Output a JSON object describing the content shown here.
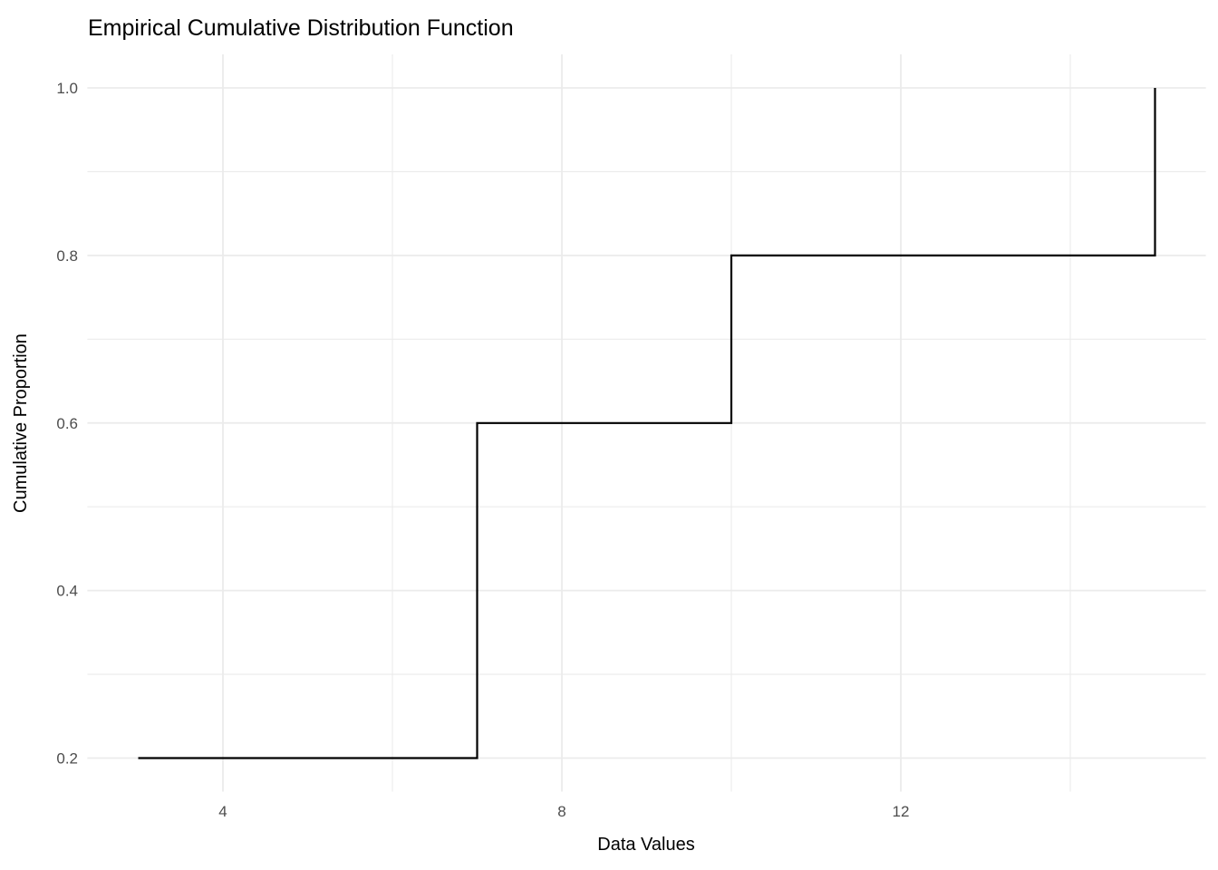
{
  "chart_data": {
    "type": "line",
    "subtype": "ecdf-step",
    "title": "Empirical Cumulative Distribution Function",
    "xlabel": "Data Values",
    "ylabel": "Cumulative Proportion",
    "data_values": [
      3,
      7,
      7,
      10,
      15
    ],
    "ecdf_points": [
      {
        "x": 3,
        "cumulative_proportion": 0.2
      },
      {
        "x": 7,
        "cumulative_proportion": 0.6
      },
      {
        "x": 10,
        "cumulative_proportion": 0.8
      },
      {
        "x": 15,
        "cumulative_proportion": 1.0
      }
    ],
    "step_path": [
      [
        3,
        0.2
      ],
      [
        7,
        0.2
      ],
      [
        7,
        0.6
      ],
      [
        10,
        0.6
      ],
      [
        10,
        0.8
      ],
      [
        15,
        0.8
      ],
      [
        15,
        1.0
      ]
    ],
    "x_tick_labels": [
      "4",
      "8",
      "12"
    ],
    "x_tick_values": [
      4,
      8,
      12
    ],
    "x_minor_gridlines": [
      6,
      10,
      14
    ],
    "y_tick_labels": [
      "0.2",
      "0.4",
      "0.6",
      "0.8",
      "1.0"
    ],
    "y_tick_values": [
      0.2,
      0.4,
      0.6,
      0.8,
      1.0
    ],
    "y_minor_gridlines": [
      0.3,
      0.5,
      0.7,
      0.9
    ],
    "xlim": [
      2.4,
      15.6
    ],
    "ylim": [
      0.16,
      1.04
    ],
    "grid": true,
    "legend_position": "none",
    "colors": {
      "background": "#FFFFFF",
      "grid_major": "#EBEBEB",
      "grid_minor": "#EBEBEB",
      "step_line": "#000000",
      "tick_text": "#4D4D4D",
      "title_text": "#000000",
      "axis_title_text": "#000000"
    }
  }
}
